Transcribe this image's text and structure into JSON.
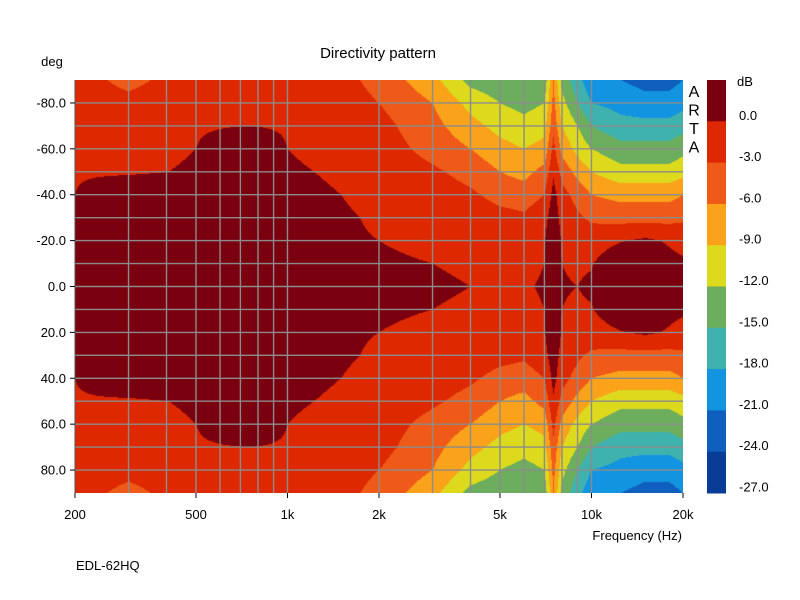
{
  "chart_data": {
    "type": "heatmap",
    "title": "Directivity pattern",
    "ylabel": "deg",
    "xlabel": "Frequency (Hz)",
    "footer": "EDL-62HQ",
    "watermark": "ARTA",
    "x_scale": "log",
    "xlim": [
      200,
      20000
    ],
    "ylim": [
      -90,
      90
    ],
    "x_ticks": [
      {
        "value": 200,
        "label": "200"
      },
      {
        "value": 500,
        "label": "500"
      },
      {
        "value": 1000,
        "label": "1k"
      },
      {
        "value": 2000,
        "label": "2k"
      },
      {
        "value": 5000,
        "label": "5k"
      },
      {
        "value": 10000,
        "label": "10k"
      },
      {
        "value": 20000,
        "label": "20k"
      }
    ],
    "y_ticks": [
      {
        "value": -80,
        "label": "-80.0"
      },
      {
        "value": -60,
        "label": "-60.0"
      },
      {
        "value": -40,
        "label": "-40.0"
      },
      {
        "value": -20,
        "label": "-20.0"
      },
      {
        "value": 0,
        "label": "0.0"
      },
      {
        "value": 20,
        "label": "20.0"
      },
      {
        "value": 40,
        "label": "40.0"
      },
      {
        "value": 60,
        "label": "60.0"
      },
      {
        "value": 80,
        "label": "80.0"
      }
    ],
    "grid": true,
    "colorbar": {
      "label": "dB",
      "ticks": [
        "0.0",
        "-3.0",
        "-6.0",
        "-9.0",
        "-12.0",
        "-15.0",
        "-18.0",
        "-21.0",
        "-24.0",
        "-27.0"
      ],
      "colors": [
        "#7a0010",
        "#dd2800",
        "#ef5a18",
        "#f9a21a",
        "#ddd91c",
        "#6dae5e",
        "#3fb2ae",
        "#1294e0",
        "#0f5fbe",
        "#093c96"
      ]
    },
    "levels_db": [
      0,
      -3,
      -6,
      -9,
      -12,
      -15,
      -18,
      -21,
      -24,
      -27
    ],
    "grid_freqs_hz": [
      200,
      300,
      500,
      750,
      1000,
      1500,
      2000,
      3000,
      4000,
      5000,
      6000,
      7000,
      7500,
      8000,
      9000,
      10000,
      12500,
      15000,
      18000,
      20000
    ],
    "grid_angles_deg": [
      -90,
      -80,
      -70,
      -60,
      -50,
      -40,
      -30,
      -20,
      -10,
      0,
      10,
      20,
      30,
      40,
      50,
      60,
      70,
      80,
      90
    ],
    "values_db_by_angle": [
      [
        -4.5,
        -7,
        -4,
        -4,
        -4,
        -5,
        -7,
        -11,
        -16,
        -17,
        -18,
        -17,
        -9,
        -16,
        -20,
        -23,
        -24,
        -25,
        -25,
        -24
      ],
      [
        -4,
        -5,
        -3.5,
        -3.5,
        -3.5,
        -4.5,
        -6,
        -9,
        -13,
        -15,
        -16,
        -15,
        -8,
        -14,
        -18,
        -21,
        -22,
        -23,
        -23,
        -22
      ],
      [
        -3.5,
        -4,
        -3.2,
        -3,
        -3.2,
        -4,
        -5,
        -8,
        -11,
        -13,
        -14,
        -13,
        -7,
        -12,
        -15,
        -18,
        -20,
        -20,
        -20,
        -19
      ],
      [
        -3.5,
        -3.6,
        -3,
        -1.5,
        -3,
        -3.5,
        -4.5,
        -7,
        -9,
        -11,
        -12,
        -11,
        -5,
        -10,
        -13,
        -15,
        -17,
        -17,
        -17,
        -16
      ],
      [
        -3.2,
        -3.3,
        -2.8,
        -1,
        -2.8,
        -3.2,
        -4,
        -5.5,
        -7,
        -9,
        -10,
        -8,
        -3.5,
        -7,
        -10,
        -12,
        -14,
        -14,
        -14,
        -13
      ],
      [
        -3,
        -1.2,
        -1,
        -1,
        -2.6,
        -3,
        -3.5,
        -4.5,
        -5.5,
        -7,
        -7.5,
        -6,
        -2,
        -5,
        -7,
        -9,
        -10,
        -10,
        -10,
        -9
      ],
      [
        -2.5,
        -0.8,
        -2.8,
        -1,
        -2.6,
        -2.8,
        -3.2,
        -3.6,
        -4.2,
        -5,
        -5.5,
        -4,
        -1.3,
        -4,
        -5.5,
        -6.5,
        -7,
        -7,
        -7,
        -6.5
      ],
      [
        -2.2,
        -0.5,
        -2.8,
        -1,
        -2.6,
        -2.8,
        -3,
        -3.3,
        -3.6,
        -4,
        -4.2,
        -3.2,
        -0.5,
        -3.4,
        -4.2,
        -4.5,
        -3.2,
        -2.5,
        -3.3,
        -4
      ],
      [
        -2,
        -0.3,
        -2.6,
        -1.5,
        -2.5,
        -2.7,
        -2.8,
        -3,
        -3.2,
        -3.4,
        -3.5,
        -3,
        -1.5,
        -3,
        -3.4,
        -3.2,
        -0.5,
        -0.5,
        -2.2,
        -2.5
      ],
      [
        -1.5,
        -0.2,
        -2.5,
        -1.2,
        -2.5,
        -2.6,
        -2.7,
        -2.8,
        -3,
        -3.1,
        -3.2,
        -2.8,
        -2,
        -2.8,
        -3,
        -2.5,
        -0.3,
        -0.3,
        -1.8,
        -1.5
      ],
      [
        -2,
        -0.3,
        -2.6,
        -1.5,
        -2.5,
        -2.7,
        -2.8,
        -3,
        -3.2,
        -3.4,
        -3.5,
        -3,
        -1.5,
        -3,
        -3.4,
        -3.2,
        -0.5,
        -0.5,
        -2.2,
        -2.5
      ],
      [
        -2.2,
        -0.5,
        -2.8,
        -1,
        -2.6,
        -2.8,
        -3,
        -3.3,
        -3.6,
        -4,
        -4.2,
        -3.2,
        -0.5,
        -3.4,
        -4.2,
        -4.5,
        -3.2,
        -2.5,
        -3.3,
        -4
      ],
      [
        -2.5,
        -0.8,
        -2.8,
        -1,
        -2.6,
        -2.8,
        -3.2,
        -3.6,
        -4.2,
        -5,
        -5.5,
        -4,
        -1.3,
        -4,
        -5.5,
        -6.5,
        -7,
        -7,
        -7,
        -6.5
      ],
      [
        -3,
        -1.2,
        -1,
        -1,
        -2.6,
        -3,
        -3.5,
        -4.5,
        -5.5,
        -7,
        -7.5,
        -6,
        -2,
        -5,
        -7,
        -9,
        -10,
        -10,
        -10,
        -9
      ],
      [
        -3.2,
        -3.3,
        -2.8,
        -1,
        -2.8,
        -3.2,
        -4,
        -5.5,
        -7,
        -9,
        -10,
        -8,
        -3.5,
        -7,
        -10,
        -12,
        -14,
        -14,
        -14,
        -13
      ],
      [
        -3.5,
        -3.6,
        -3,
        -1.5,
        -3,
        -3.5,
        -4.5,
        -7,
        -9,
        -11,
        -12,
        -11,
        -5,
        -10,
        -13,
        -15,
        -17,
        -17,
        -17,
        -16
      ],
      [
        -3.5,
        -4,
        -3.2,
        -3,
        -3.2,
        -4,
        -5,
        -8,
        -11,
        -13,
        -14,
        -13,
        -7,
        -12,
        -15,
        -18,
        -20,
        -20,
        -20,
        -19
      ],
      [
        -4,
        -5,
        -3.5,
        -3.5,
        -3.5,
        -4.5,
        -6,
        -9,
        -13,
        -15,
        -16,
        -15,
        -8,
        -14,
        -18,
        -21,
        -22,
        -23,
        -23,
        -22
      ],
      [
        -4.5,
        -7,
        -4,
        -4,
        -4,
        -5,
        -7,
        -11,
        -16,
        -17,
        -18,
        -17,
        -9,
        -16,
        -20,
        -23,
        -24,
        -25,
        -25,
        -24
      ]
    ]
  }
}
